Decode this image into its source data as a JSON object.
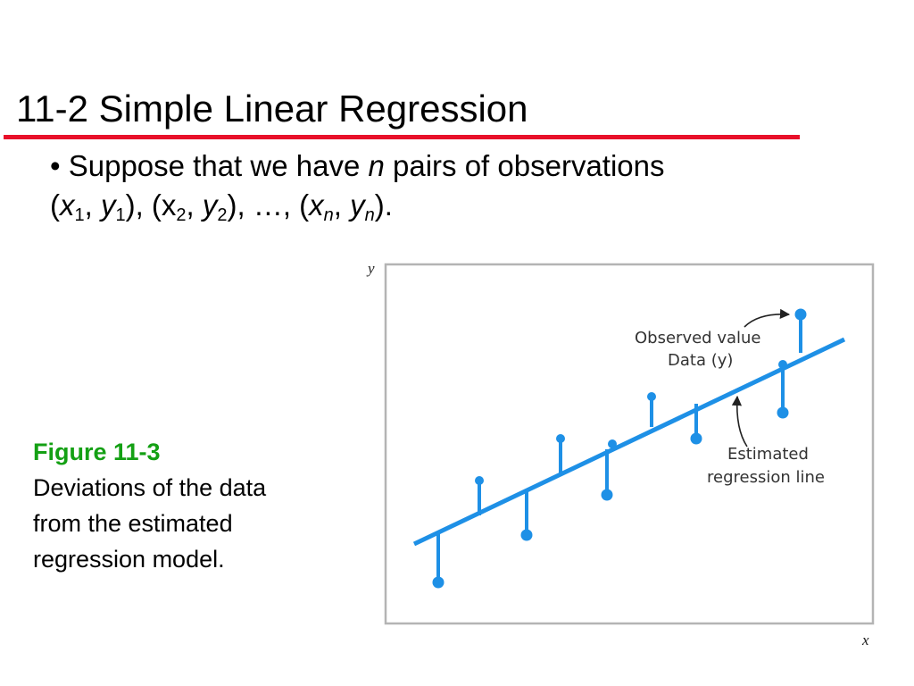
{
  "slide": {
    "title": "11-2 Simple Linear Regression",
    "bullet": {
      "marker": "•",
      "line1_text": "Suppose that we have ",
      "line1_var": "n",
      "line1_rest": " pairs of observations",
      "line2_parts": [
        {
          "text": "(",
          "style": "normal"
        },
        {
          "text": "x",
          "style": "italic"
        },
        {
          "text": "1",
          "style": "sub"
        },
        {
          "text": ", ",
          "style": "normal"
        },
        {
          "text": "y",
          "style": "italic"
        },
        {
          "text": "1",
          "style": "sub"
        },
        {
          "text": "), (x",
          "style": "normal"
        },
        {
          "text": "2",
          "style": "sub"
        },
        {
          "text": ", ",
          "style": "normal"
        },
        {
          "text": "y",
          "style": "italic"
        },
        {
          "text": "2",
          "style": "sub"
        },
        {
          "text": "), …, (",
          "style": "normal"
        },
        {
          "text": "x",
          "style": "italic"
        },
        {
          "text": "n",
          "style": "sub-italic"
        },
        {
          "text": ", ",
          "style": "normal"
        },
        {
          "text": "y",
          "style": "italic"
        },
        {
          "text": "n",
          "style": "sub-italic"
        },
        {
          "text": ").",
          "style": "normal"
        }
      ]
    },
    "caption": {
      "label": "Figure 11-3",
      "text": "Deviations of the data from the estimated regression model."
    },
    "figure": {
      "y_axis_label": "y",
      "x_axis_label": "x",
      "annotation_observed_line1": "Observed value",
      "annotation_observed_line2": "Data (y)",
      "annotation_estimated_line1": "Estimated",
      "annotation_estimated_line2": "regression line"
    },
    "colors": {
      "title_rule": "#e8102a",
      "caption_label": "#14a014",
      "data_blue": "#1e90e6",
      "frame": "#b4b4b4",
      "annotation_text": "#333333"
    }
  }
}
